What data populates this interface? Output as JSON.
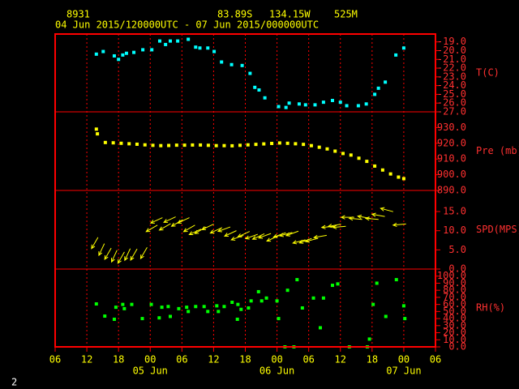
{
  "header": {
    "station": "8931",
    "latitude": "83.89S",
    "longitude": "134.15W",
    "elevation": "525M",
    "period": "04 Jun 2015/120000UTC - 07 Jun 2015/000000UTC"
  },
  "page_number": "2",
  "chart_data": [
    {
      "type": "scatter",
      "ylabel": "T(C)",
      "color": "#00ffff",
      "x": [
        13.8,
        15.1,
        17.2,
        18,
        18.8,
        19.5,
        20.9,
        22.6,
        24.3,
        25.8,
        26.9,
        27.8,
        29.2,
        31.2,
        32.6,
        33.4,
        34.9,
        36.1,
        37.5,
        39.4,
        41.4,
        42.9,
        43.8,
        44.6,
        45.7,
        48.3,
        49.7,
        50.3,
        52.2,
        53.4,
        55.2,
        56.8,
        58.5,
        60,
        61.2,
        63.4,
        64.9,
        66.5,
        67.2,
        68.5,
        70.5,
        72
      ],
      "values": [
        -20.4,
        -20.1,
        -20.6,
        -21.0,
        -20.5,
        -20.3,
        -20.2,
        -19.9,
        -19.9,
        -18.9,
        -19.3,
        -18.9,
        -18.9,
        -18.7,
        -19.6,
        -19.7,
        -19.7,
        -20.1,
        -21.3,
        -21.6,
        -21.7,
        -22.6,
        -24.2,
        -24.5,
        -25.4,
        -26.4,
        -26.5,
        -26.0,
        -26.1,
        -26.2,
        -26.2,
        -25.9,
        -25.7,
        -25.9,
        -26.3,
        -26.3,
        -26.1,
        -25.0,
        -24.3,
        -23.6,
        -20.5,
        -19.7
      ],
      "ylim": [
        -27,
        -18.1
      ],
      "yticks": [
        {
          "value": -19,
          "label": "-19.0"
        },
        {
          "value": -20,
          "label": "-20.0"
        },
        {
          "value": -21,
          "label": "-21.0"
        },
        {
          "value": -22,
          "label": "-22.0"
        },
        {
          "value": -23,
          "label": "-23.0"
        },
        {
          "value": -24,
          "label": "-24.0"
        },
        {
          "value": -25,
          "label": "-25.0"
        },
        {
          "value": -26,
          "label": "-26.0"
        },
        {
          "value": -27,
          "label": "-27.0"
        }
      ]
    },
    {
      "type": "scatter",
      "ylabel": "Pre (mb)",
      "color": "#ffff00",
      "x": [
        13.8,
        14,
        15.5,
        17,
        18.5,
        20,
        21.5,
        23,
        24.5,
        26,
        27.5,
        29,
        30.5,
        32,
        33.5,
        35,
        36.5,
        38,
        39.5,
        41,
        42.5,
        44,
        45.5,
        47,
        48.5,
        50,
        51.5,
        53,
        54.5,
        56,
        57.5,
        59,
        60.5,
        62,
        63.5,
        65,
        66.5,
        68,
        69.5,
        71,
        72
      ],
      "values": [
        929,
        926,
        920.5,
        920.3,
        920,
        919.7,
        919.4,
        919,
        918.7,
        918.5,
        918.6,
        918.8,
        918.8,
        918.9,
        918.9,
        918.7,
        918.5,
        918.5,
        918.4,
        918.7,
        919,
        919.3,
        919.6,
        919.9,
        920.2,
        920,
        919.7,
        919.3,
        918.5,
        917.5,
        916.4,
        915,
        913.5,
        912.5,
        910.5,
        908.5,
        905.5,
        903,
        900.5,
        898.5,
        897.5
      ],
      "ylim": [
        890,
        940
      ],
      "yticks": [
        {
          "value": 930,
          "label": "930.0"
        },
        {
          "value": 920,
          "label": "920.0"
        },
        {
          "value": 910,
          "label": "910.0"
        },
        {
          "value": 900,
          "label": "900.0"
        },
        {
          "value": 890,
          "label": "890.0"
        }
      ]
    },
    {
      "type": "arrows",
      "ylabel": "SPD(MPS)",
      "color": "#ffff00",
      "x": [
        13.5,
        14.8,
        16,
        17.2,
        18.5,
        19.7,
        20.9,
        22.8,
        24.3,
        25.2,
        26.8,
        27.7,
        29.1,
        30.3,
        31.4,
        32.5,
        33.5,
        34.9,
        36.5,
        38,
        39.2,
        40.5,
        41.7,
        43.2,
        44.5,
        45.7,
        47.2,
        48.5,
        49.7,
        50.9,
        52.2,
        53.4,
        54.6,
        56.2,
        57.7,
        58.9,
        59.8,
        61.4,
        62.9,
        64.5,
        66,
        67.2,
        68.8,
        71.2
      ],
      "values": [
        6.8,
        5.1,
        4.0,
        3.4,
        3.0,
        3.8,
        3.8,
        4.2,
        10.6,
        12.7,
        11,
        12.9,
        12,
        12.7,
        10.6,
        9.7,
        10.1,
        11,
        10.1,
        10.4,
        9.3,
        8.2,
        9.1,
        8.5,
        8.5,
        8.7,
        8,
        8.9,
        9.1,
        9.3,
        7.2,
        7.4,
        7.6,
        8.5,
        11,
        11.4,
        11,
        13.5,
        13.1,
        13.5,
        13.1,
        14,
        15.4,
        11.6
      ],
      "directions": [
        210,
        205,
        210,
        205,
        210,
        205,
        210,
        210,
        240,
        245,
        240,
        245,
        240,
        245,
        240,
        245,
        240,
        245,
        245,
        250,
        245,
        250,
        245,
        250,
        245,
        250,
        245,
        250,
        255,
        250,
        255,
        250,
        255,
        260,
        265,
        260,
        265,
        270,
        275,
        280,
        275,
        280,
        285,
        265
      ],
      "ylim": [
        0,
        20.5
      ],
      "yticks": [
        {
          "value": 15,
          "label": "15.0"
        },
        {
          "value": 10,
          "label": "10.0"
        },
        {
          "value": 5,
          "label": "5.0"
        },
        {
          "value": 0,
          "label": "0.0"
        }
      ]
    },
    {
      "type": "scatter",
      "ylabel": "RH(%)",
      "color": "#00ff00",
      "x": [
        13.8,
        15.4,
        17.2,
        17.5,
        18.8,
        19.1,
        20.5,
        22.5,
        24.2,
        25.7,
        26.2,
        27.4,
        27.8,
        29.4,
        30.9,
        31.2,
        32.6,
        34.2,
        34.9,
        36.6,
        36.9,
        38,
        39.5,
        40.5,
        40.6,
        41.2,
        42.6,
        43.1,
        44.5,
        45.1,
        46,
        48,
        48.3,
        49.5,
        50,
        51.2,
        51.8,
        52.8,
        54.9,
        56.2,
        56.8,
        58.5,
        59.5,
        61.7,
        65.1,
        65.5,
        66.2,
        66.9,
        68.6,
        70.6,
        72,
        72.2
      ],
      "values": [
        60.7,
        43.5,
        39,
        56,
        60,
        54,
        60,
        40,
        60,
        41,
        56,
        57,
        43,
        54,
        56,
        50,
        57,
        57,
        50,
        58,
        50,
        57,
        63,
        39,
        60,
        53,
        55,
        65,
        78,
        65,
        69,
        65,
        40,
        0,
        80,
        0,
        95,
        55,
        69,
        27,
        69,
        87,
        89,
        0,
        0,
        11,
        60,
        90,
        43,
        95,
        58,
        40
      ],
      "ylim": [
        0,
        110
      ],
      "yticks": [
        {
          "value": 100,
          "label": "100.0"
        },
        {
          "value": 90,
          "label": "90.0"
        },
        {
          "value": 80,
          "label": "80.0"
        },
        {
          "value": 70,
          "label": "70.0"
        },
        {
          "value": 60,
          "label": "60.0"
        },
        {
          "value": 50,
          "label": "50.0"
        },
        {
          "value": 40,
          "label": "40.0"
        },
        {
          "value": 30,
          "label": "30.0"
        },
        {
          "value": 20,
          "label": "20.0"
        },
        {
          "value": 10,
          "label": "10.0"
        },
        {
          "value": 0,
          "label": "0.0"
        }
      ],
      "xlim": [
        6,
        78
      ],
      "xticks": [
        {
          "value": 6,
          "label": "06"
        },
        {
          "value": 12,
          "label": "12"
        },
        {
          "value": 18,
          "label": "18"
        },
        {
          "value": 24,
          "label": "00"
        },
        {
          "value": 30,
          "label": "06"
        },
        {
          "value": 36,
          "label": "12"
        },
        {
          "value": 42,
          "label": "18"
        },
        {
          "value": 48,
          "label": "00"
        },
        {
          "value": 54,
          "label": "06"
        },
        {
          "value": 60,
          "label": "12"
        },
        {
          "value": 66,
          "label": "18"
        },
        {
          "value": 72,
          "label": "00"
        },
        {
          "value": 78,
          "label": "06"
        }
      ],
      "date_ticks": [
        {
          "value": 24,
          "label": "05 Jun"
        },
        {
          "value": 48,
          "label": "06 Jun"
        },
        {
          "value": 72,
          "label": "07 Jun"
        }
      ],
      "grid": true
    }
  ]
}
